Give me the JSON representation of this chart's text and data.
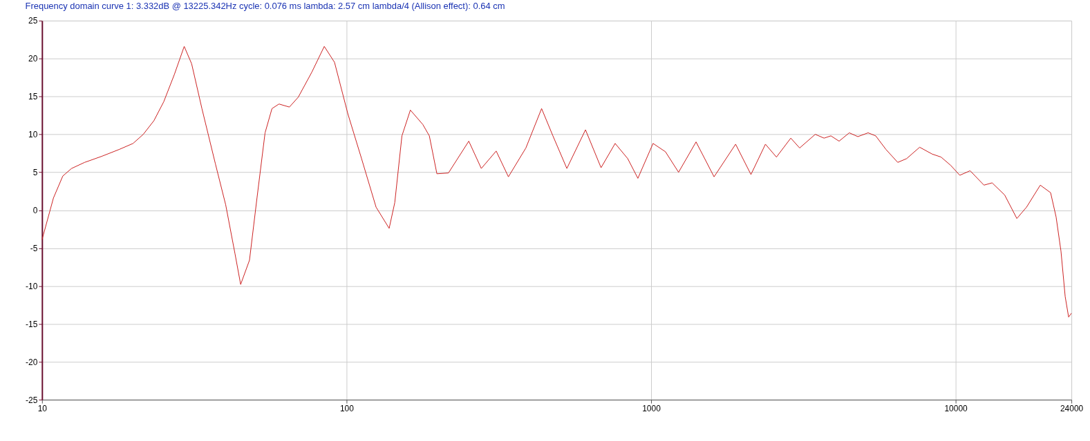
{
  "chart_data": {
    "type": "line",
    "title": "Frequency domain curve 1:  3.332dB @ 13225.342Hz    cycle: 0.076 ms   lambda: 2.57 cm  lambda/4 (Allison effect): 0.64 cm",
    "log": "x",
    "xlim": [
      10,
      24000
    ],
    "xticks": [
      10,
      100,
      1000,
      10000,
      24000
    ],
    "ylim": [
      -25,
      25
    ],
    "yticks": [
      -25,
      -20,
      -15,
      -10,
      -5,
      0,
      5,
      10,
      15,
      20,
      25
    ],
    "grid": true,
    "line_style": "solid",
    "marker": "none",
    "series": [
      {
        "color": "#cc2222",
        "x": [
          10,
          10.9,
          11.7,
          12.5,
          13.8,
          15.7,
          17.9,
          19.9,
          21.5,
          23.3,
          25.1,
          27.2,
          29.3,
          31.0,
          33.5,
          37.1,
          40.1,
          43.0,
          44.9,
          48.0,
          50.8,
          54.0,
          56.9,
          60.0,
          64.9,
          69.4,
          76.9,
          84.5,
          91.3,
          101,
          112,
          125,
          138,
          144,
          152,
          162,
          178,
          187,
          198,
          216,
          252,
          277,
          310,
          340,
          388,
          437,
          476,
          529,
          609,
          685,
          762,
          838,
          905,
          1015,
          1115,
          1231,
          1405,
          1610,
          1895,
          2128,
          2374,
          2580,
          2876,
          3075,
          3460,
          3698,
          3895,
          4144,
          4475,
          4775,
          5160,
          5465,
          5908,
          6456,
          6905,
          7620,
          8375,
          8960,
          9640,
          10320,
          11160,
          12390,
          13180,
          14490,
          15890,
          17100,
          18970,
          20510,
          21380,
          22180,
          22900,
          23500,
          24000
        ],
        "values": [
          -3.9,
          1.6,
          4.5,
          5.5,
          6.3,
          7.1,
          8.0,
          8.8,
          10.0,
          11.8,
          14.3,
          17.9,
          21.6,
          19.3,
          13.4,
          6.1,
          0.7,
          -5.7,
          -9.8,
          -6.6,
          1.6,
          10.2,
          13.4,
          14.0,
          13.6,
          14.9,
          18.2,
          21.6,
          19.5,
          12.7,
          6.8,
          0.4,
          -2.4,
          1.0,
          9.8,
          13.2,
          11.3,
          9.8,
          4.8,
          4.9,
          9.1,
          5.5,
          7.8,
          4.4,
          8.2,
          13.4,
          9.8,
          5.5,
          10.6,
          5.6,
          8.8,
          6.8,
          4.2,
          8.8,
          7.7,
          5.0,
          9.0,
          4.4,
          8.7,
          4.7,
          8.7,
          7.0,
          9.5,
          8.2,
          10.0,
          9.5,
          9.8,
          9.1,
          10.2,
          9.7,
          10.2,
          9.8,
          8.0,
          6.3,
          6.8,
          8.3,
          7.4,
          7.0,
          5.9,
          4.6,
          5.2,
          3.3,
          3.6,
          2.0,
          -1.1,
          0.4,
          3.3,
          2.3,
          -0.9,
          -5.4,
          -11.4,
          -14.1,
          -13.6
        ]
      }
    ]
  }
}
